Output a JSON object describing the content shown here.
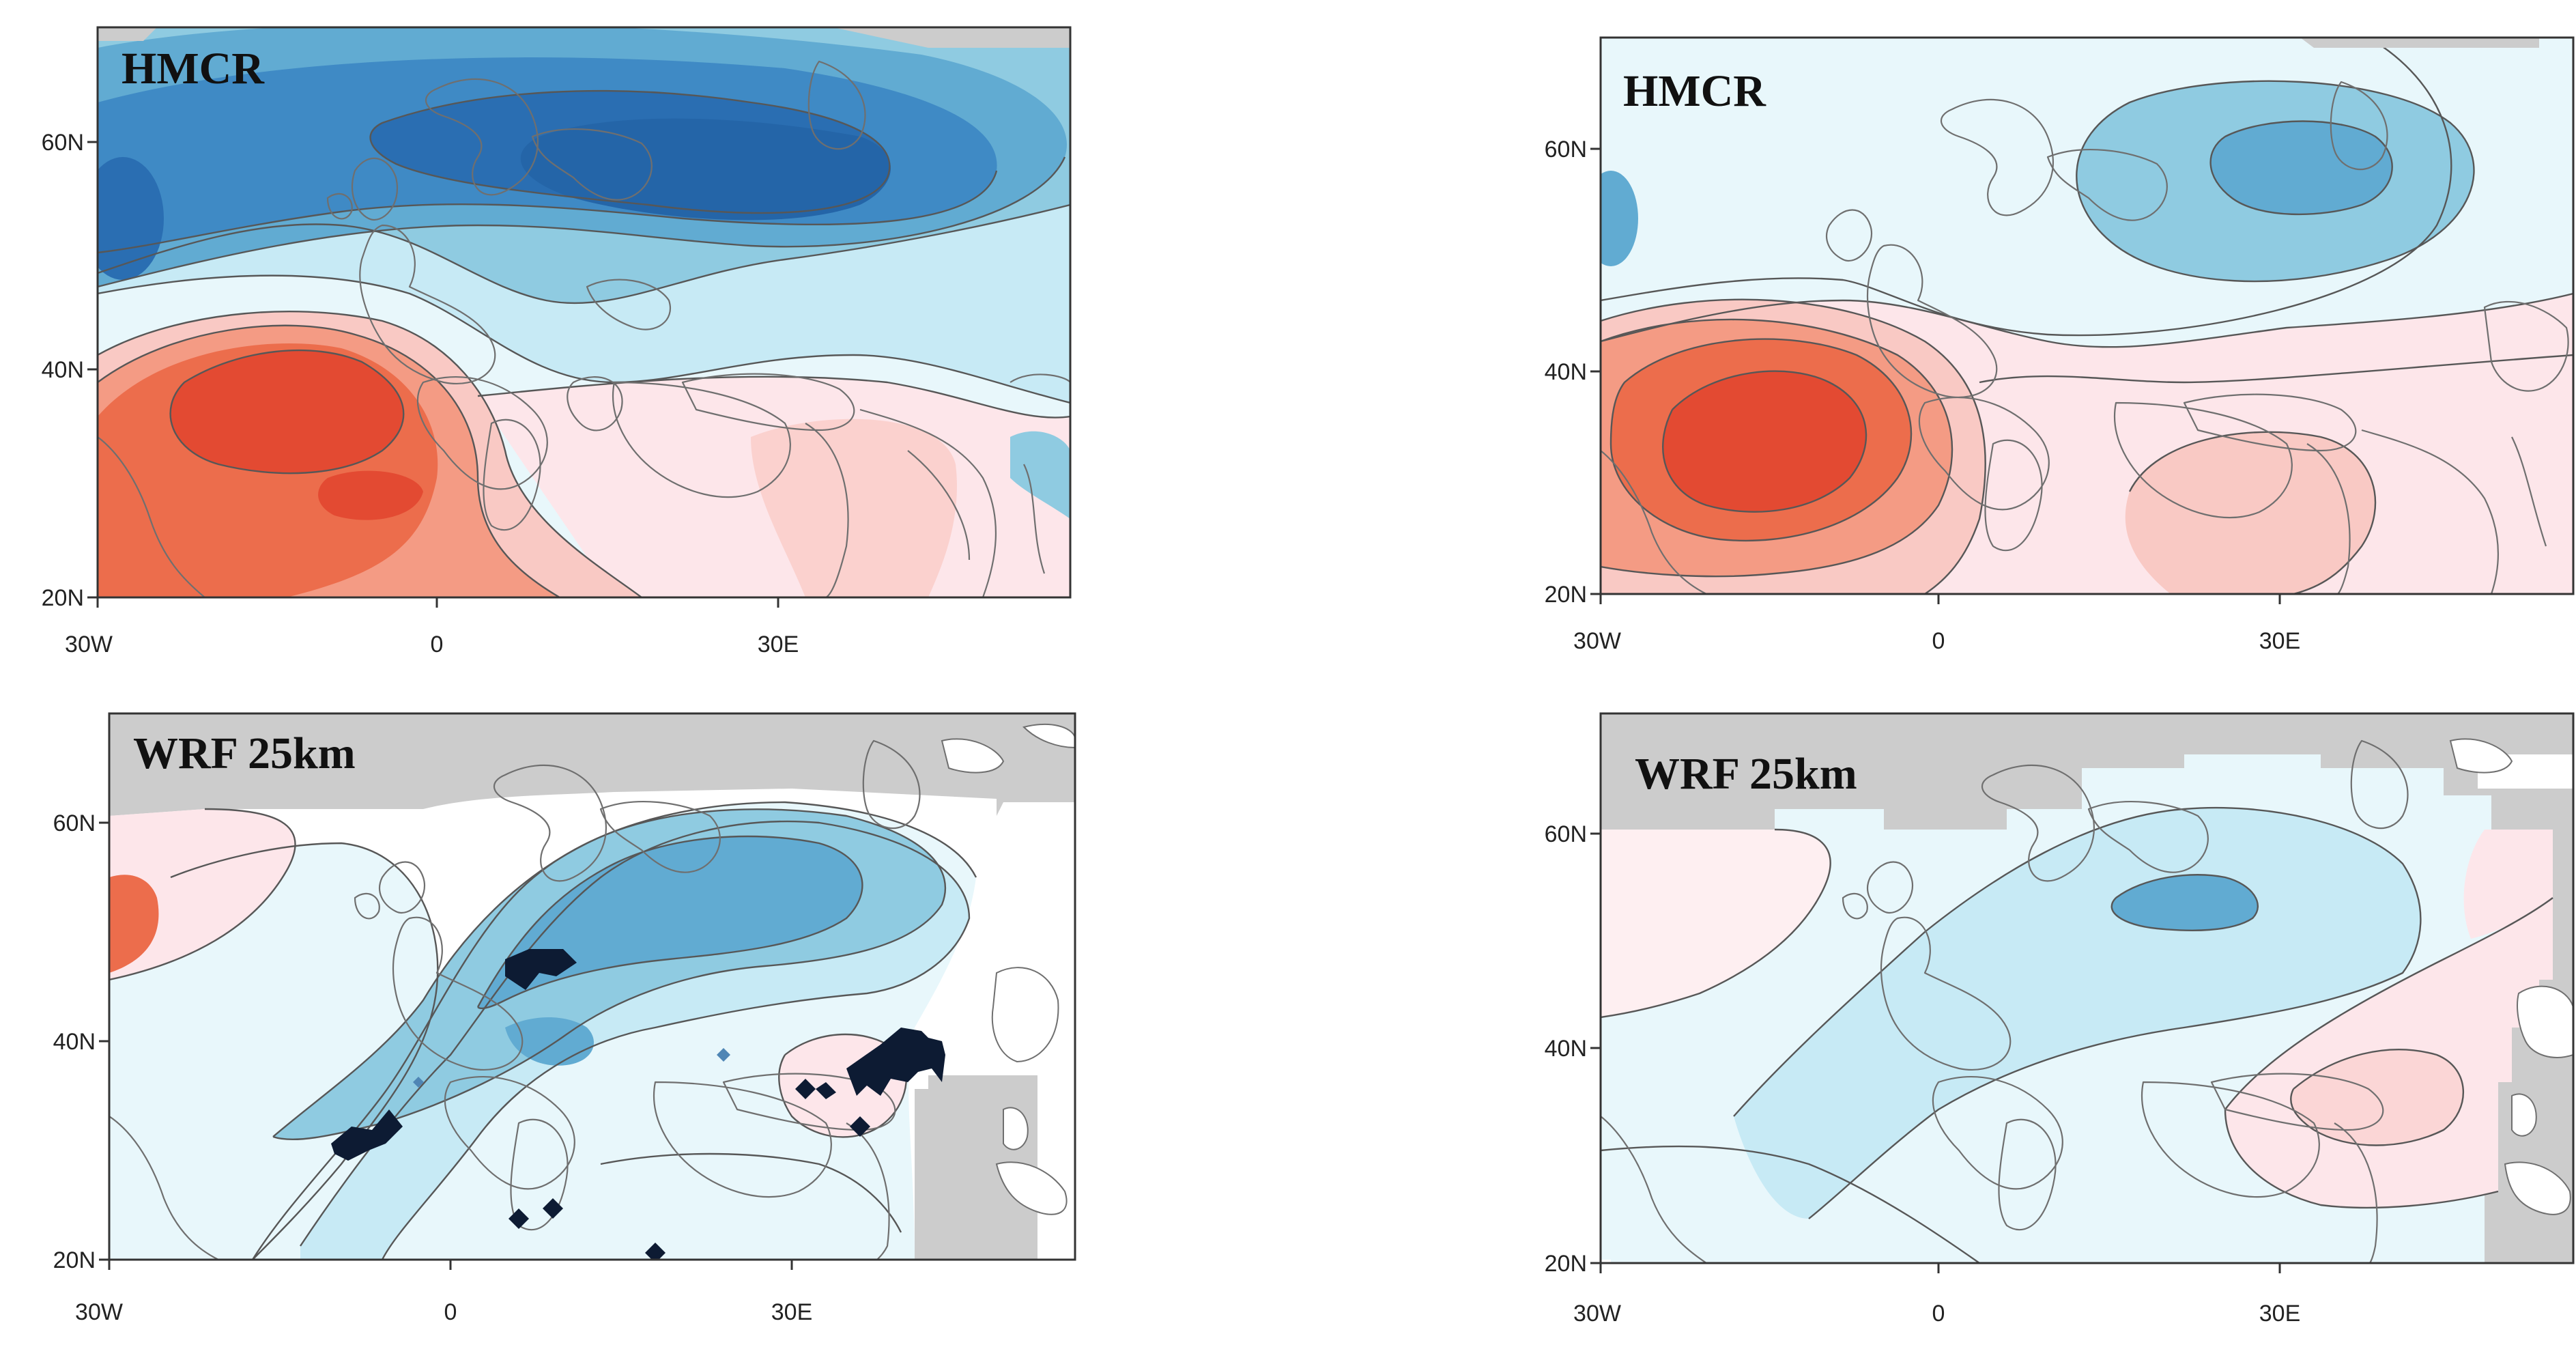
{
  "figure": {
    "panels": [
      {
        "id": "top-left",
        "title": "HMCR",
        "x_ticks": [
          "30W",
          "0",
          "30E"
        ],
        "y_ticks": [
          "60N",
          "40N",
          "20N"
        ]
      },
      {
        "id": "top-right",
        "title": "HMCR",
        "x_ticks": [
          "30W",
          "0",
          "30E"
        ],
        "y_ticks": [
          "60N",
          "40N",
          "20N"
        ]
      },
      {
        "id": "bottom-left",
        "title": "WRF 25km",
        "x_ticks": [
          "30W",
          "0",
          "30E"
        ],
        "y_ticks": [
          "60N",
          "40N",
          "20N"
        ]
      },
      {
        "id": "bottom-right",
        "title": "WRF 25km",
        "x_ticks": [
          "30W",
          "0",
          "30E"
        ],
        "y_ticks": [
          "60N",
          "40N",
          "20N"
        ]
      }
    ],
    "palette": {
      "blue_1": "#e8f7fb",
      "blue_2": "#c7eaf5",
      "blue_3": "#8fcbe1",
      "blue_4": "#61abd2",
      "blue_5": "#3f8ac5",
      "blue_6": "#2a6eb2",
      "red_1": "#fde6ea",
      "red_2": "#f9c9c4",
      "red_3": "#f49b84",
      "red_4": "#ec6d4c",
      "red_5": "#e34a32",
      "land_masked": "#cccccc"
    }
  }
}
